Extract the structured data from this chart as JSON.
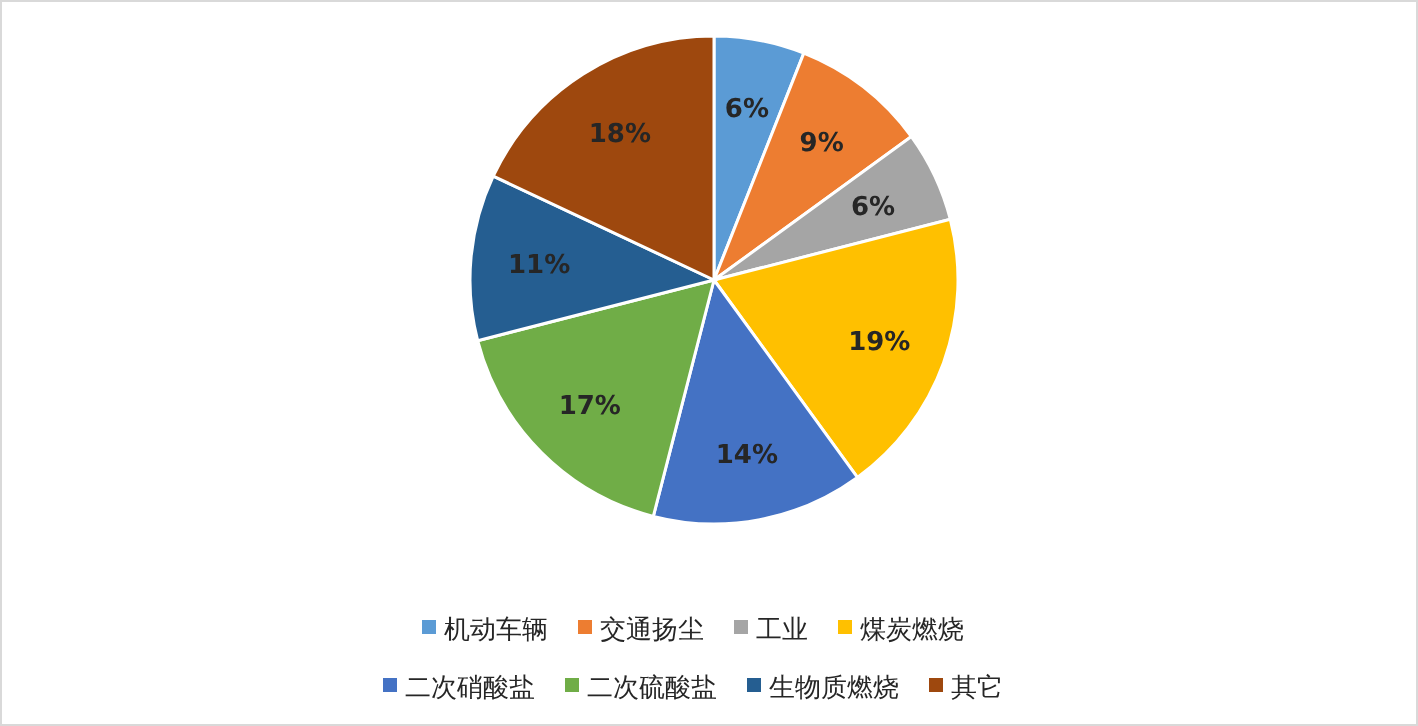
{
  "chart_data": {
    "type": "pie",
    "categories": [
      "机动车辆",
      "交通扬尘",
      "工业",
      "煤炭燃烧",
      "二次硝酸盐",
      "二次硫酸盐",
      "生物质燃烧",
      "其它"
    ],
    "values": [
      6,
      9,
      6,
      19,
      14,
      17,
      11,
      18
    ],
    "value_labels": [
      "6%",
      "9%",
      "6%",
      "19%",
      "14%",
      "17%",
      "11%",
      "18%"
    ],
    "colors": [
      "#5b9bd5",
      "#ed7d31",
      "#a5a5a5",
      "#ffc000",
      "#4472c4",
      "#70ad47",
      "#255e91",
      "#9e480e"
    ],
    "legend": "bottom"
  }
}
